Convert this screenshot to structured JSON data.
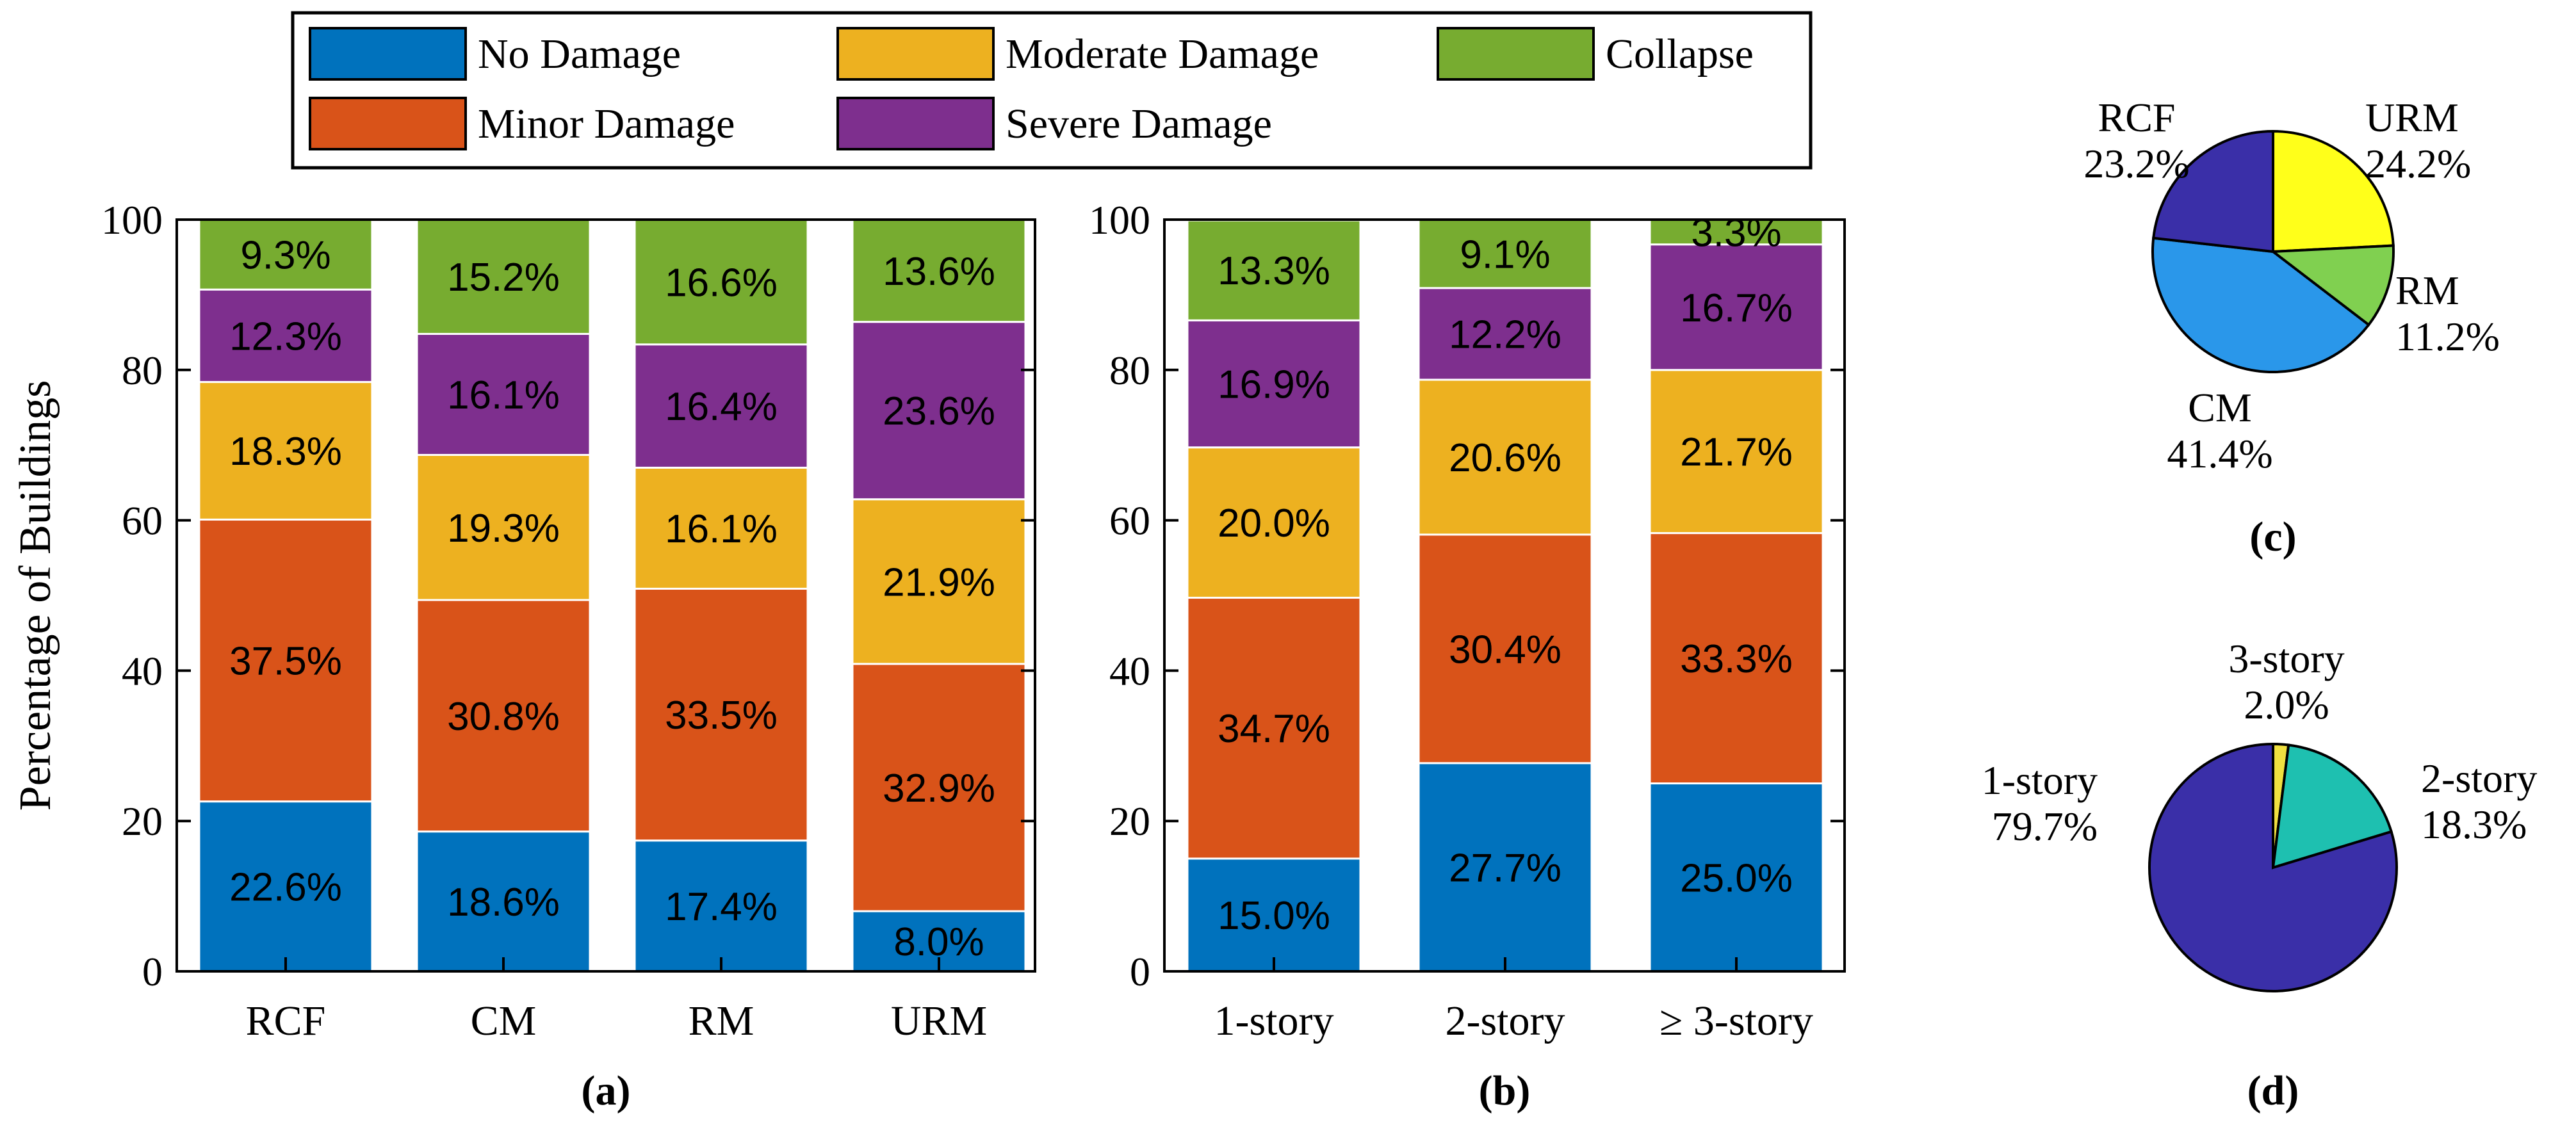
{
  "legend": {
    "items": [
      {
        "label": "No Damage",
        "color": "#0072BD"
      },
      {
        "label": "Moderate Damage",
        "color": "#EDB120"
      },
      {
        "label": "Collapse",
        "color": "#77AC30"
      },
      {
        "label": "Minor Damage",
        "color": "#D95319"
      },
      {
        "label": "Severe Damage",
        "color": "#7E2F8E"
      }
    ]
  },
  "chart_data": [
    {
      "type": "bar",
      "stacked": true,
      "panel_label": "(a)",
      "ylabel": "Percentage of Buildings",
      "xlabel": "",
      "ylim": [
        0,
        100
      ],
      "yticks": [
        "0",
        "20",
        "40",
        "60",
        "80",
        "100"
      ],
      "categories": [
        "RCF",
        "CM",
        "RM",
        "URM"
      ],
      "series": [
        {
          "name": "No Damage",
          "color": "#0072BD",
          "values": [
            22.6,
            18.6,
            17.4,
            8.0
          ],
          "labels": [
            "22.6%",
            "18.6%",
            "17.4%",
            "8.0%"
          ]
        },
        {
          "name": "Minor Damage",
          "color": "#D95319",
          "values": [
            37.5,
            30.8,
            33.5,
            32.9
          ],
          "labels": [
            "37.5%",
            "30.8%",
            "33.5%",
            "32.9%"
          ]
        },
        {
          "name": "Moderate Damage",
          "color": "#EDB120",
          "values": [
            18.3,
            19.3,
            16.1,
            21.9
          ],
          "labels": [
            "18.3%",
            "19.3%",
            "16.1%",
            "21.9%"
          ]
        },
        {
          "name": "Severe Damage",
          "color": "#7E2F8E",
          "values": [
            12.3,
            16.1,
            16.4,
            23.6
          ],
          "labels": [
            "12.3%",
            "16.1%",
            "16.4%",
            "23.6%"
          ]
        },
        {
          "name": "Collapse",
          "color": "#77AC30",
          "values": [
            9.3,
            15.2,
            16.6,
            13.6
          ],
          "labels": [
            "9.3%",
            "15.2%",
            "16.6%",
            "13.6%"
          ]
        }
      ]
    },
    {
      "type": "bar",
      "stacked": true,
      "panel_label": "(b)",
      "ylabel": "",
      "xlabel": "",
      "ylim": [
        0,
        100
      ],
      "yticks": [
        "0",
        "20",
        "40",
        "60",
        "80",
        "100"
      ],
      "categories": [
        "1-story",
        "2-story",
        "≥ 3-story"
      ],
      "series": [
        {
          "name": "No Damage",
          "color": "#0072BD",
          "values": [
            15.0,
            27.7,
            25.0
          ],
          "labels": [
            "15.0%",
            "27.7%",
            "25.0%"
          ]
        },
        {
          "name": "Minor Damage",
          "color": "#D95319",
          "values": [
            34.7,
            30.4,
            33.3
          ],
          "labels": [
            "34.7%",
            "30.4%",
            "33.3%"
          ]
        },
        {
          "name": "Moderate Damage",
          "color": "#EDB120",
          "values": [
            20.0,
            20.6,
            21.7
          ],
          "labels": [
            "20.0%",
            "20.6%",
            "21.7%"
          ]
        },
        {
          "name": "Severe Damage",
          "color": "#7E2F8E",
          "values": [
            16.9,
            12.2,
            16.7
          ],
          "labels": [
            "16.9%",
            "12.2%",
            "16.7%"
          ]
        },
        {
          "name": "Collapse",
          "color": "#77AC30",
          "values": [
            13.3,
            9.1,
            3.3
          ],
          "labels": [
            "13.3%",
            "9.1%",
            "3.3%"
          ]
        }
      ]
    },
    {
      "type": "pie",
      "panel_label": "(c)",
      "slices": [
        {
          "name": "URM",
          "value": 24.2,
          "label": "24.2%",
          "color": "#FFFF1A"
        },
        {
          "name": "RM",
          "value": 11.2,
          "label": "11.2%",
          "color": "#80D050"
        },
        {
          "name": "CM",
          "value": 41.4,
          "label": "41.4%",
          "color": "#2A97EA"
        },
        {
          "name": "RCF",
          "value": 23.2,
          "label": "23.2%",
          "color": "#3A2FA8"
        }
      ]
    },
    {
      "type": "pie",
      "panel_label": "(d)",
      "slices": [
        {
          "name": "3-story",
          "value": 2.0,
          "label": "2.0%",
          "color": "#F0E040"
        },
        {
          "name": "2-story",
          "value": 18.3,
          "label": "18.3%",
          "color": "#1EC0B0"
        },
        {
          "name": "1-story",
          "value": 79.7,
          "label": "79.7%",
          "color": "#3A2FA8"
        }
      ]
    }
  ]
}
